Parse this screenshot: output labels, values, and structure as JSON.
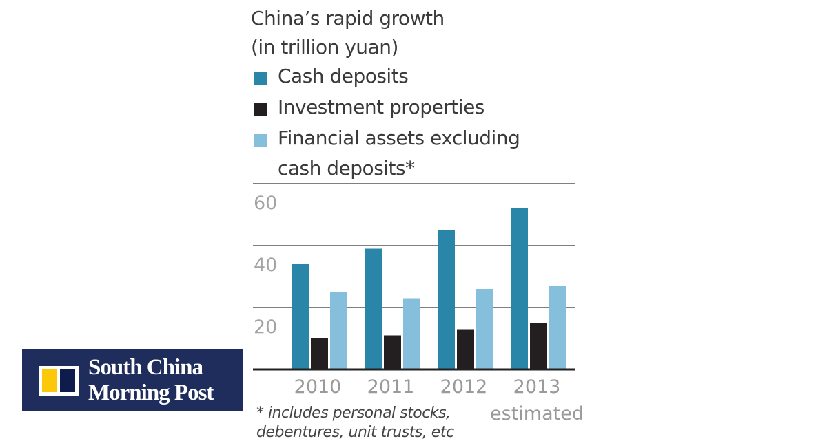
{
  "chart_data": {
    "type": "bar",
    "title": "China’s rapid growth",
    "subtitle": "(in trillion yuan)",
    "categories": [
      "2010",
      "2011",
      "2012",
      "2013"
    ],
    "category_note": "estimated",
    "series": [
      {
        "name": "Cash deposits",
        "color": "#2a86a8",
        "values": [
          34,
          39,
          45,
          52
        ]
      },
      {
        "name": "Investment properties",
        "color": "#231f20",
        "values": [
          10,
          11,
          13,
          15
        ]
      },
      {
        "name": "Financial assets excluding cash deposits*",
        "name_line2": "cash deposits*",
        "name_line1": "Financial assets excluding",
        "color": "#86bfdb",
        "values": [
          25,
          23,
          26,
          27
        ]
      }
    ],
    "yticks": [
      20,
      40,
      60
    ],
    "ylim": [
      0,
      60
    ],
    "grid": true,
    "legend": "top",
    "footnote_line1": "* includes personal stocks,",
    "footnote_line2": "debentures, unit trusts, etc"
  },
  "logo": {
    "text": "South China Morning Post",
    "colors": {
      "background": "#1f2d5c",
      "yellow": "#fec80a",
      "navy": "#0e1b4d"
    }
  }
}
